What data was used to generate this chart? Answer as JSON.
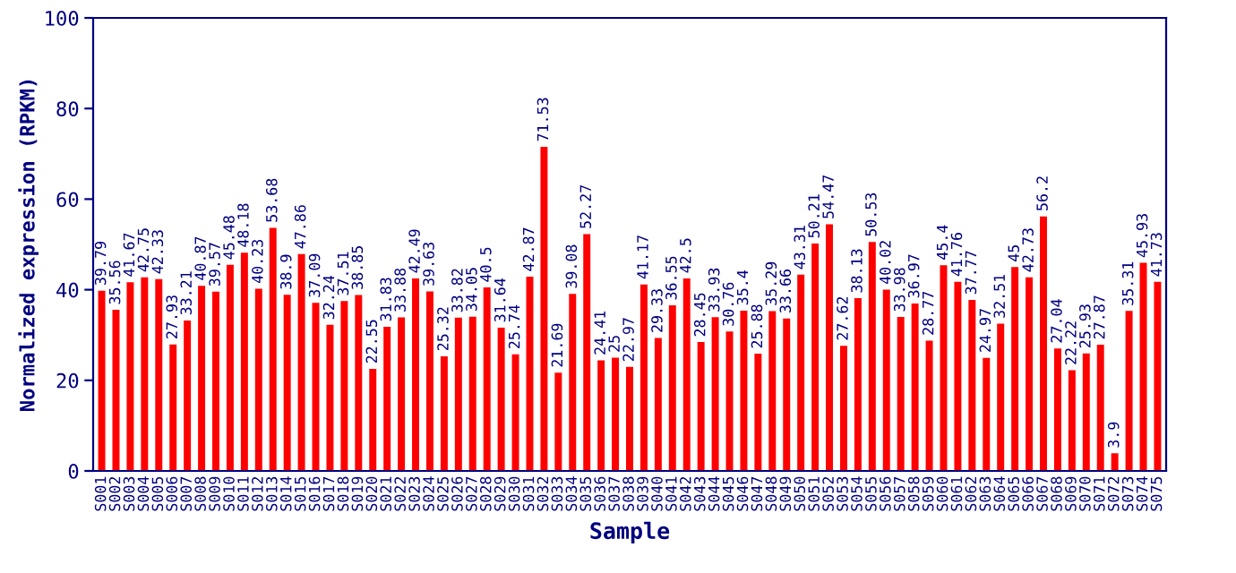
{
  "chart_data": {
    "type": "bar",
    "xlabel": "Sample",
    "ylabel": "Normalized expression (RPKM)",
    "categories": [
      "S001",
      "S002",
      "S003",
      "S004",
      "S005",
      "S006",
      "S007",
      "S008",
      "S009",
      "S010",
      "S011",
      "S012",
      "S013",
      "S014",
      "S015",
      "S016",
      "S017",
      "S018",
      "S019",
      "S020",
      "S021",
      "S022",
      "S023",
      "S024",
      "S025",
      "S026",
      "S027",
      "S028",
      "S029",
      "S030",
      "S031",
      "S032",
      "S033",
      "S034",
      "S035",
      "S036",
      "S037",
      "S038",
      "S039",
      "S040",
      "S041",
      "S042",
      "S043",
      "S044",
      "S045",
      "S046",
      "S047",
      "S048",
      "S049",
      "S050",
      "S051",
      "S052",
      "S053",
      "S054",
      "S055",
      "S056",
      "S057",
      "S058",
      "S059",
      "S060",
      "S061",
      "S062",
      "S063",
      "S064",
      "S065",
      "S066",
      "S067",
      "S068",
      "S069",
      "S070",
      "S071",
      "S072",
      "S073",
      "S074",
      "S075"
    ],
    "values": [
      39.79,
      35.56,
      41.67,
      42.75,
      42.33,
      27.93,
      33.21,
      40.87,
      39.57,
      45.48,
      48.18,
      40.23,
      53.68,
      38.9,
      47.86,
      37.09,
      32.24,
      37.51,
      38.85,
      22.55,
      31.83,
      33.88,
      42.49,
      39.63,
      25.32,
      33.82,
      34.05,
      40.5,
      31.64,
      25.74,
      42.87,
      71.53,
      21.69,
      39.08,
      52.27,
      24.41,
      25,
      22.97,
      41.17,
      29.33,
      36.55,
      42.5,
      28.45,
      33.93,
      30.76,
      35.4,
      25.88,
      35.29,
      33.66,
      43.31,
      50.21,
      54.47,
      27.62,
      38.13,
      50.53,
      40.02,
      33.98,
      36.97,
      28.77,
      45.4,
      41.76,
      37.77,
      24.97,
      32.51,
      45,
      42.73,
      56.2,
      27.04,
      22.22,
      25.93,
      27.87,
      3.9,
      35.31,
      45.93,
      41.73
    ],
    "color": "#ff0000",
    "ylim": [
      0,
      100
    ],
    "yticks": [
      0,
      20,
      40,
      60,
      80,
      100
    ],
    "data_labels": true,
    "grid": false,
    "legend": false
  }
}
